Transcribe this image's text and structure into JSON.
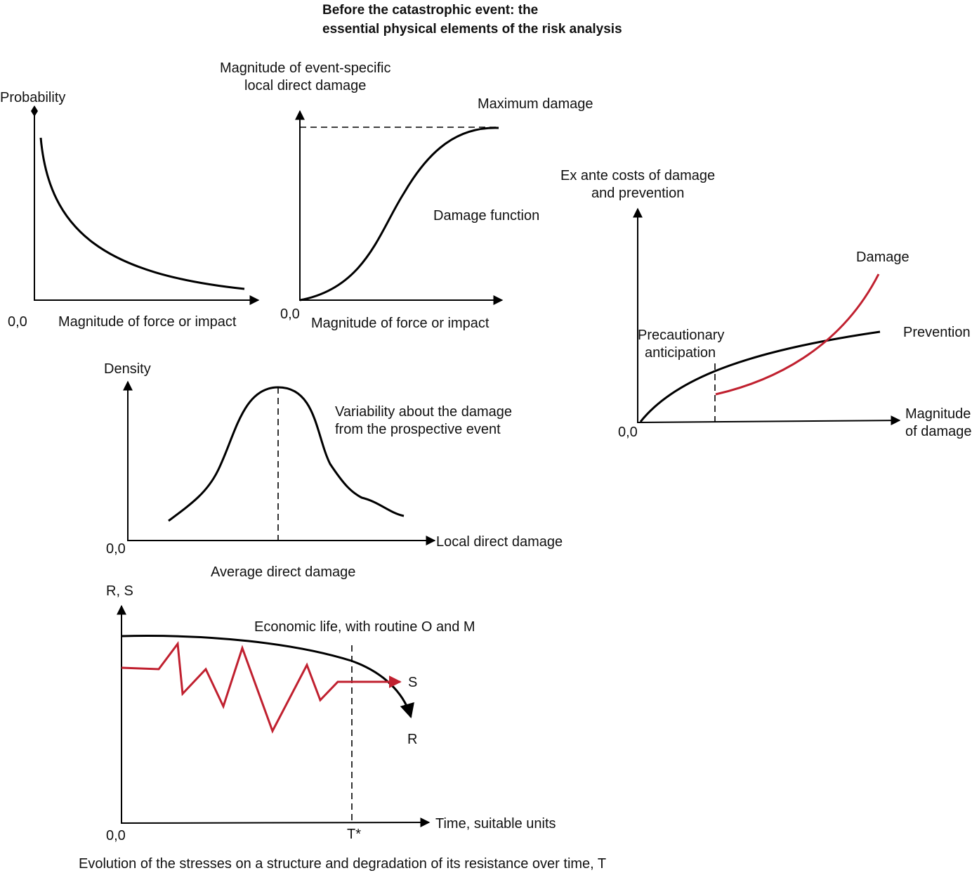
{
  "title": {
    "line1": "Before the catastrophic event: the",
    "line2": "essential physical elements of the risk analysis"
  },
  "panel_probability": {
    "y_label": "Probability",
    "origin": "0,0",
    "x_label": "Magnitude of force or impact"
  },
  "panel_damage_function": {
    "y_label_line1": "Magnitude of event-specific",
    "y_label_line2": "local direct damage",
    "max_label": "Maximum damage",
    "curve_label": "Damage function",
    "origin": "0,0",
    "x_label": "Magnitude of force or impact"
  },
  "panel_costs": {
    "y_label_line1": "Ex ante costs of damage",
    "y_label_line2": "and prevention",
    "damage_label": "Damage",
    "prevention_label": "Prevention",
    "precaution_line1": "Precautionary",
    "precaution_line2": "anticipation",
    "origin": "0,0",
    "x_label_line1": "Magnitude",
    "x_label_line2": "of damage",
    "colors": {
      "damage": "#c0202f",
      "prevention": "#000000"
    }
  },
  "panel_density": {
    "y_label": "Density",
    "annotation_line1": "Variability about the damage",
    "annotation_line2": "from the prospective event",
    "origin": "0,0",
    "x_label": "Local direct damage",
    "mean_label": "Average direct damage"
  },
  "panel_resistance": {
    "y_label": "R, S",
    "annotation": "Economic life, with routine O and M",
    "s_label": "S",
    "r_label": "R",
    "origin": "0,0",
    "x_label": "Time, suitable units",
    "t_label": "T*",
    "caption": "Evolution of the stresses on a structure and degradation of its resistance over time, T",
    "colors": {
      "stress": "#c0202f",
      "resistance": "#000000"
    }
  }
}
